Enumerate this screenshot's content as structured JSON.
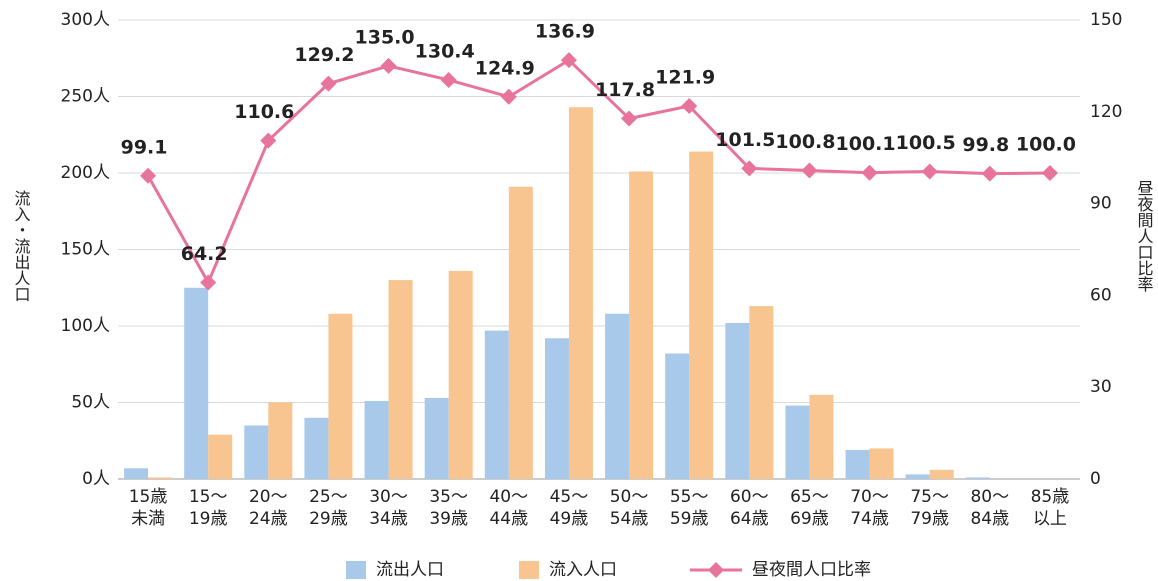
{
  "chart_data": {
    "type": "bar",
    "categories": [
      [
        "15歳",
        "未満"
      ],
      [
        "15～",
        "19歳"
      ],
      [
        "20～",
        "24歳"
      ],
      [
        "25～",
        "29歳"
      ],
      [
        "30～",
        "34歳"
      ],
      [
        "35～",
        "39歳"
      ],
      [
        "40～",
        "44歳"
      ],
      [
        "45～",
        "49歳"
      ],
      [
        "50～",
        "54歳"
      ],
      [
        "55～",
        "59歳"
      ],
      [
        "60～",
        "64歳"
      ],
      [
        "65～",
        "69歳"
      ],
      [
        "70～",
        "74歳"
      ],
      [
        "75～",
        "79歳"
      ],
      [
        "80～",
        "84歳"
      ],
      [
        "85歳",
        "以上"
      ]
    ],
    "series": [
      {
        "name": "流出人口",
        "type": "bar",
        "color": "#a9c9eb",
        "values": [
          7,
          125,
          35,
          40,
          51,
          53,
          97,
          92,
          108,
          82,
          102,
          48,
          19,
          3,
          1,
          0
        ]
      },
      {
        "name": "流入人口",
        "type": "bar",
        "color": "#f8c590",
        "values": [
          1,
          29,
          50,
          108,
          130,
          136,
          191,
          243,
          201,
          214,
          113,
          55,
          20,
          6,
          0,
          0
        ]
      },
      {
        "name": "昼夜間人口比率",
        "type": "line",
        "axis": "y2",
        "color": "#e8739b",
        "values": [
          99.1,
          64.2,
          110.6,
          129.2,
          135,
          130.4,
          124.9,
          136.9,
          117.8,
          121.9,
          101.5,
          100.8,
          100.1,
          100.5,
          99.8,
          100
        ],
        "value_labels": [
          "99.1",
          "64.2",
          "110.6",
          "129.2",
          "135.0",
          "130.4",
          "124.9",
          "136.9",
          "117.8",
          "121.9",
          "101.5",
          "100.8",
          "100.1",
          "100.5",
          "99.8",
          "100.0"
        ]
      }
    ],
    "ylabel": "流入・流出人口",
    "y2label": "昼夜間人口比率",
    "ylim": [
      0,
      300
    ],
    "yticks": [
      {
        "value": 0,
        "label": "0人"
      },
      {
        "value": 50,
        "label": "50人"
      },
      {
        "value": 100,
        "label": "100人"
      },
      {
        "value": 150,
        "label": "150人"
      },
      {
        "value": 200,
        "label": "200人"
      },
      {
        "value": 250,
        "label": "250人"
      },
      {
        "value": 300,
        "label": "300人"
      }
    ],
    "y2lim": [
      0,
      150
    ],
    "y2ticks": [
      0,
      30,
      60,
      90,
      120,
      150
    ],
    "grid": true,
    "legend": "bottom"
  }
}
